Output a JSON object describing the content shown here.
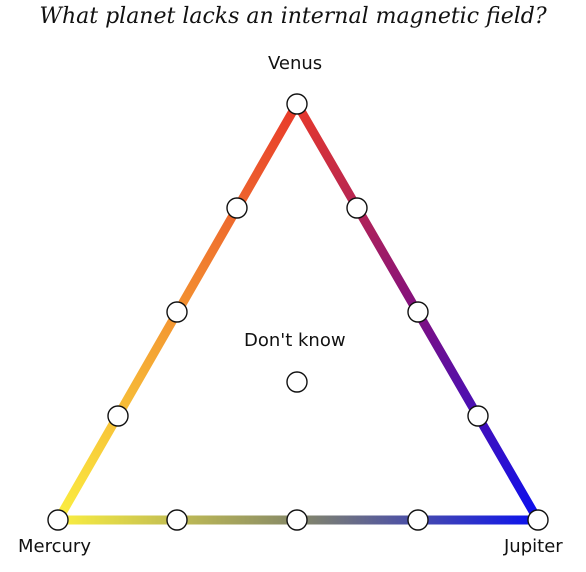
{
  "question": "What planet lacks an internal magnetic field?",
  "options": {
    "top": "Venus",
    "left": "Mercury",
    "right": "Jupiter",
    "center": "Don't know"
  },
  "colors": {
    "top": "#e8392a",
    "left": "#fbef40",
    "right": "#0a10f0",
    "left_edge_mid": "#f39331",
    "right_edge_mid": "#800f80",
    "bottom_edge_mid": "#858868"
  }
}
